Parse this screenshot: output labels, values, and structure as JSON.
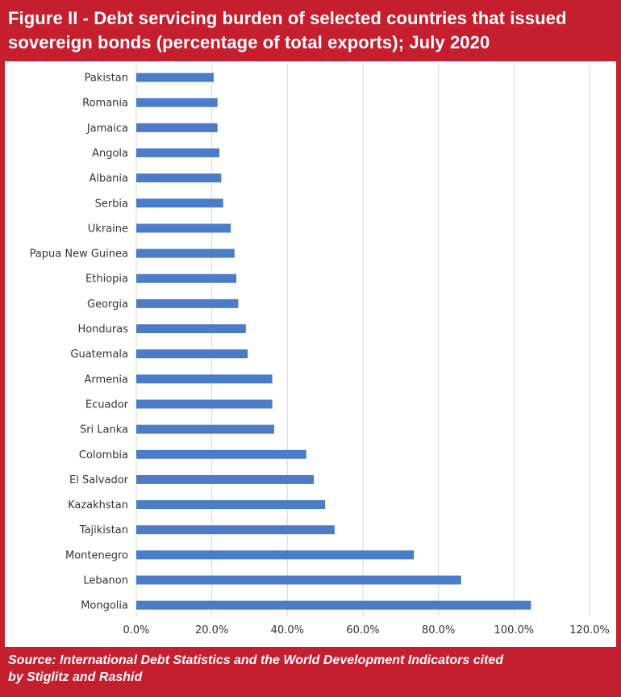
{
  "figure": {
    "title_line1": "Figure II - Debt servicing burden of selected countries that issued",
    "title_line2": "sovereign bonds (percentage of total exports); July 2020",
    "source_line1": "Source: International Debt Statistics and the World Development Indicators cited",
    "source_line2": "by Stiglitz and Rashid"
  },
  "colors": {
    "frame": "#c41e2f",
    "bar": "#4a7cc7",
    "grid": "#d9d9d9"
  },
  "chart_data": {
    "type": "bar",
    "orientation": "horizontal",
    "title": "Figure II - Debt servicing burden of selected countries that issued sovereign bonds (percentage of total exports); July 2020",
    "xlabel": "",
    "ylabel": "",
    "categories": [
      "Pakistan",
      "Romania",
      "Jamaica",
      "Angola",
      "Albania",
      "Serbia",
      "Ukraine",
      "Papua New Guinea",
      "Ethiopia",
      "Georgia",
      "Honduras",
      "Guatemala",
      "Armenia",
      "Ecuador",
      "Sri Lanka",
      "Colombia",
      "El Salvador",
      "Kazakhstan",
      "Tajikistan",
      "Montenegro",
      "Lebanon",
      "Mongolia"
    ],
    "values": [
      20.5,
      21.5,
      21.5,
      22.0,
      22.5,
      23.0,
      25.0,
      26.0,
      26.5,
      27.0,
      29.0,
      29.5,
      36.0,
      36.0,
      36.5,
      45.0,
      47.0,
      50.0,
      52.5,
      73.5,
      86.0,
      104.5
    ],
    "xlim": [
      0,
      120
    ],
    "xticks": [
      "0.0%",
      "20.0%",
      "40.0%",
      "60.0%",
      "80.0%",
      "100.0%",
      "120.0%"
    ],
    "xtick_values": [
      0,
      20,
      40,
      60,
      80,
      100,
      120
    ],
    "grid": true,
    "legend": "none"
  }
}
